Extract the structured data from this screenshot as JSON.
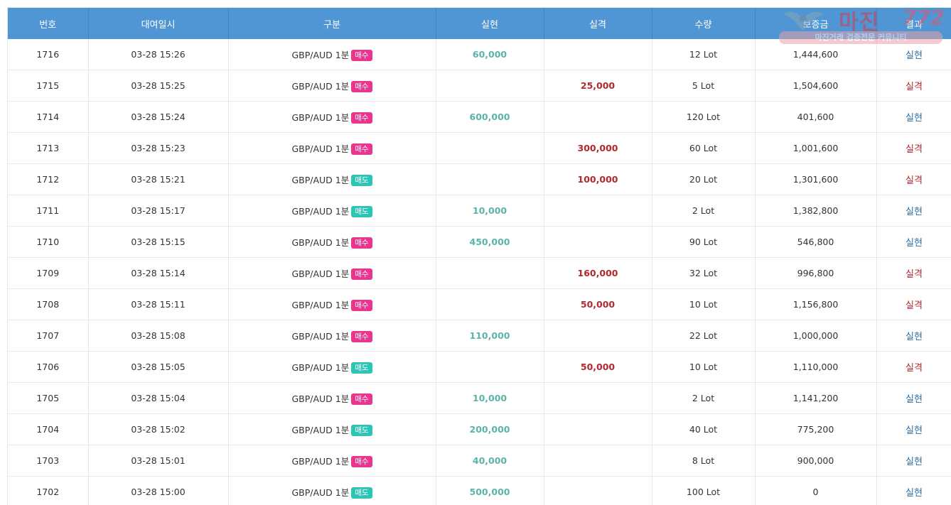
{
  "table": {
    "headers": {
      "num": "번호",
      "time": "대여일시",
      "type": "구분",
      "profit": "실현",
      "loss": "실격",
      "qty": "수량",
      "margin": "보증금",
      "result": "결과"
    },
    "rows": [
      {
        "num": "1716",
        "time": "03-28 15:26",
        "pair": "GBP/AUD 1분",
        "side": "매수",
        "side_type": "buy",
        "profit": "60,000",
        "loss": "",
        "qty": "12 Lot",
        "margin": "1,444,600",
        "result": "실현",
        "result_type": "win"
      },
      {
        "num": "1715",
        "time": "03-28 15:25",
        "pair": "GBP/AUD 1분",
        "side": "매수",
        "side_type": "buy",
        "profit": "",
        "loss": "25,000",
        "qty": "5 Lot",
        "margin": "1,504,600",
        "result": "실격",
        "result_type": "lose"
      },
      {
        "num": "1714",
        "time": "03-28 15:24",
        "pair": "GBP/AUD 1분",
        "side": "매수",
        "side_type": "buy",
        "profit": "600,000",
        "loss": "",
        "qty": "120 Lot",
        "margin": "401,600",
        "result": "실현",
        "result_type": "win"
      },
      {
        "num": "1713",
        "time": "03-28 15:23",
        "pair": "GBP/AUD 1분",
        "side": "매수",
        "side_type": "buy",
        "profit": "",
        "loss": "300,000",
        "qty": "60 Lot",
        "margin": "1,001,600",
        "result": "실격",
        "result_type": "lose"
      },
      {
        "num": "1712",
        "time": "03-28 15:21",
        "pair": "GBP/AUD 1분",
        "side": "매도",
        "side_type": "sell",
        "profit": "",
        "loss": "100,000",
        "qty": "20 Lot",
        "margin": "1,301,600",
        "result": "실격",
        "result_type": "lose"
      },
      {
        "num": "1711",
        "time": "03-28 15:17",
        "pair": "GBP/AUD 1분",
        "side": "매도",
        "side_type": "sell",
        "profit": "10,000",
        "loss": "",
        "qty": "2 Lot",
        "margin": "1,382,800",
        "result": "실현",
        "result_type": "win"
      },
      {
        "num": "1710",
        "time": "03-28 15:15",
        "pair": "GBP/AUD 1분",
        "side": "매수",
        "side_type": "buy",
        "profit": "450,000",
        "loss": "",
        "qty": "90 Lot",
        "margin": "546,800",
        "result": "실현",
        "result_type": "win"
      },
      {
        "num": "1709",
        "time": "03-28 15:14",
        "pair": "GBP/AUD 1분",
        "side": "매수",
        "side_type": "buy",
        "profit": "",
        "loss": "160,000",
        "qty": "32 Lot",
        "margin": "996,800",
        "result": "실격",
        "result_type": "lose"
      },
      {
        "num": "1708",
        "time": "03-28 15:11",
        "pair": "GBP/AUD 1분",
        "side": "매수",
        "side_type": "buy",
        "profit": "",
        "loss": "50,000",
        "qty": "10 Lot",
        "margin": "1,156,800",
        "result": "실격",
        "result_type": "lose"
      },
      {
        "num": "1707",
        "time": "03-28 15:08",
        "pair": "GBP/AUD 1분",
        "side": "매수",
        "side_type": "buy",
        "profit": "110,000",
        "loss": "",
        "qty": "22 Lot",
        "margin": "1,000,000",
        "result": "실현",
        "result_type": "win"
      },
      {
        "num": "1706",
        "time": "03-28 15:05",
        "pair": "GBP/AUD 1분",
        "side": "매도",
        "side_type": "sell",
        "profit": "",
        "loss": "50,000",
        "qty": "10 Lot",
        "margin": "1,110,000",
        "result": "실격",
        "result_type": "lose"
      },
      {
        "num": "1705",
        "time": "03-28 15:04",
        "pair": "GBP/AUD 1분",
        "side": "매수",
        "side_type": "buy",
        "profit": "10,000",
        "loss": "",
        "qty": "2 Lot",
        "margin": "1,141,200",
        "result": "실현",
        "result_type": "win"
      },
      {
        "num": "1704",
        "time": "03-28 15:02",
        "pair": "GBP/AUD 1분",
        "side": "매도",
        "side_type": "sell",
        "profit": "200,000",
        "loss": "",
        "qty": "40 Lot",
        "margin": "775,200",
        "result": "실현",
        "result_type": "win"
      },
      {
        "num": "1703",
        "time": "03-28 15:01",
        "pair": "GBP/AUD 1분",
        "side": "매수",
        "side_type": "buy",
        "profit": "40,000",
        "loss": "",
        "qty": "8 Lot",
        "margin": "900,000",
        "result": "실현",
        "result_type": "win"
      },
      {
        "num": "1702",
        "time": "03-28 15:00",
        "pair": "GBP/AUD 1분",
        "side": "매도",
        "side_type": "sell",
        "profit": "500,000",
        "loss": "",
        "qty": "100 Lot",
        "margin": "0",
        "result": "실현",
        "result_type": "win"
      }
    ]
  },
  "watermark": {
    "brand": "마진",
    "brand_num": "772",
    "tagline": "마진거래 검증전문 커뮤니티",
    "emblem": "eagle-emblem-icon"
  },
  "colors": {
    "header_bg": "#5096d4",
    "profit": "#5cb3a8",
    "loss": "#b3282d",
    "badge_buy": "#e8358d",
    "badge_sell": "#2ec5b8"
  }
}
